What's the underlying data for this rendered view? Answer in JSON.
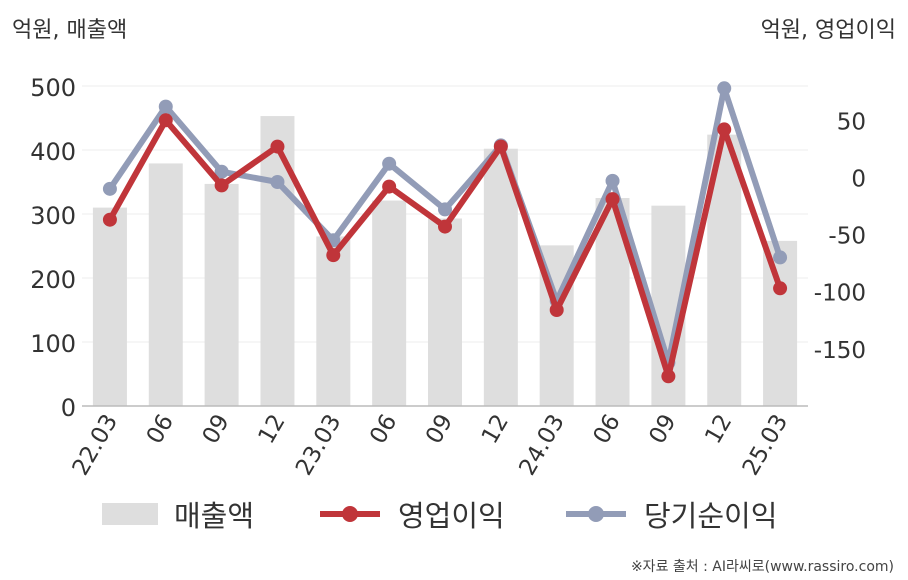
{
  "header": {
    "left_unit": "억원, 매출액",
    "right_unit": "억원, 영업이익"
  },
  "footer": {
    "source": "※자료 출처 : AI라씨로(www.rassiro.com)"
  },
  "chart_data": {
    "type": "bar+line",
    "categories": [
      "22.03",
      "06",
      "09",
      "12",
      "23.03",
      "06",
      "09",
      "12",
      "24.03",
      "06",
      "09",
      "12",
      "25.03"
    ],
    "left_axis": {
      "label": "억원, 매출액",
      "range": [
        0,
        500
      ],
      "ticks": [
        0,
        100,
        200,
        300,
        400,
        500
      ]
    },
    "right_axis": {
      "label": "억원, 영업이익",
      "range": [
        -200,
        80
      ],
      "ticks": [
        50,
        0,
        -50,
        -100,
        -150
      ]
    },
    "series": [
      {
        "name": "매출액",
        "kind": "bar",
        "axis": "left",
        "color": "#dedede",
        "values": [
          310,
          379,
          347,
          453,
          265,
          321,
          293,
          402,
          251,
          325,
          313,
          424,
          258
        ]
      },
      {
        "name": "영업이익",
        "kind": "line",
        "axis": "right",
        "color": "#c0353a",
        "values": [
          -37,
          50,
          -7,
          27,
          -68,
          -8,
          -43,
          27,
          -116,
          -19,
          -174,
          42,
          -97
        ]
      },
      {
        "name": "당기순이익",
        "kind": "line",
        "axis": "right",
        "color": "#929cb7",
        "values": [
          -10,
          62,
          5,
          -4,
          -55,
          12,
          -28,
          28,
          -108,
          -3,
          -162,
          78,
          -70
        ]
      }
    ],
    "legend_position": "bottom",
    "grid": true
  }
}
